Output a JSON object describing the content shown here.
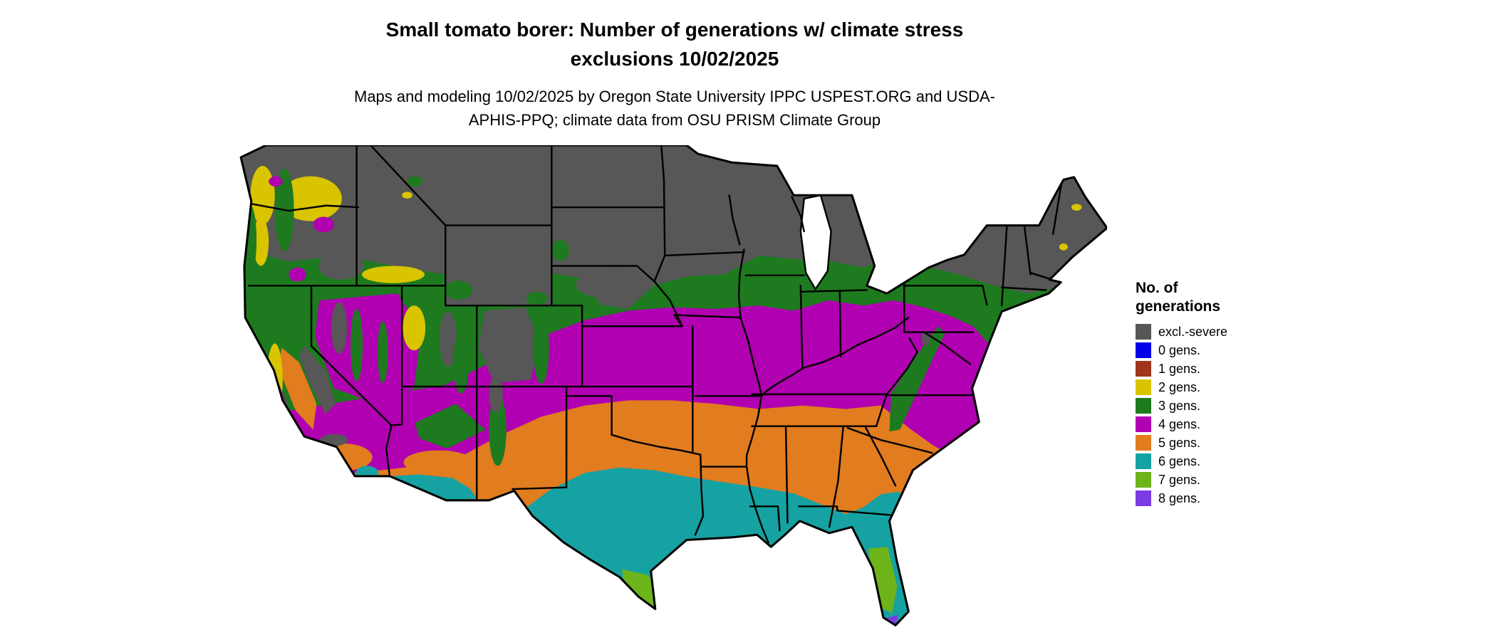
{
  "header": {
    "title": "Small tomato borer: Number of generations w/ climate stress exclusions 10/02/2025",
    "subtitle": "Maps and modeling 10/02/2025 by Oregon State University IPPC USPEST.ORG and USDA-APHIS-PPQ; climate data from OSU PRISM Climate Group"
  },
  "legend": {
    "title": "No. of generations",
    "items": [
      {
        "label": "excl.-severe",
        "color_key": "gray"
      },
      {
        "label": "0 gens.",
        "color_key": "blue"
      },
      {
        "label": "1 gens.",
        "color_key": "red1"
      },
      {
        "label": "2 gens.",
        "color_key": "yellow2"
      },
      {
        "label": "3 gens.",
        "color_key": "green3"
      },
      {
        "label": "4 gens.",
        "color_key": "magenta4"
      },
      {
        "label": "5 gens.",
        "color_key": "orange5"
      },
      {
        "label": "6 gens.",
        "color_key": "teal6"
      },
      {
        "label": "7 gens.",
        "color_key": "lime7"
      },
      {
        "label": "8 gens.",
        "color_key": "violet8"
      }
    ]
  },
  "palette": {
    "gray": "#575757",
    "blue": "#0000e8",
    "red1": "#a0341c",
    "yellow2": "#d9c400",
    "green3": "#1e7a1f",
    "magenta4": "#b100b1",
    "orange5": "#e17c1f",
    "teal6": "#16a2a2",
    "lime7": "#6db41b",
    "violet8": "#7b3be3",
    "water": "#ffffff",
    "border": "#000000"
  }
}
